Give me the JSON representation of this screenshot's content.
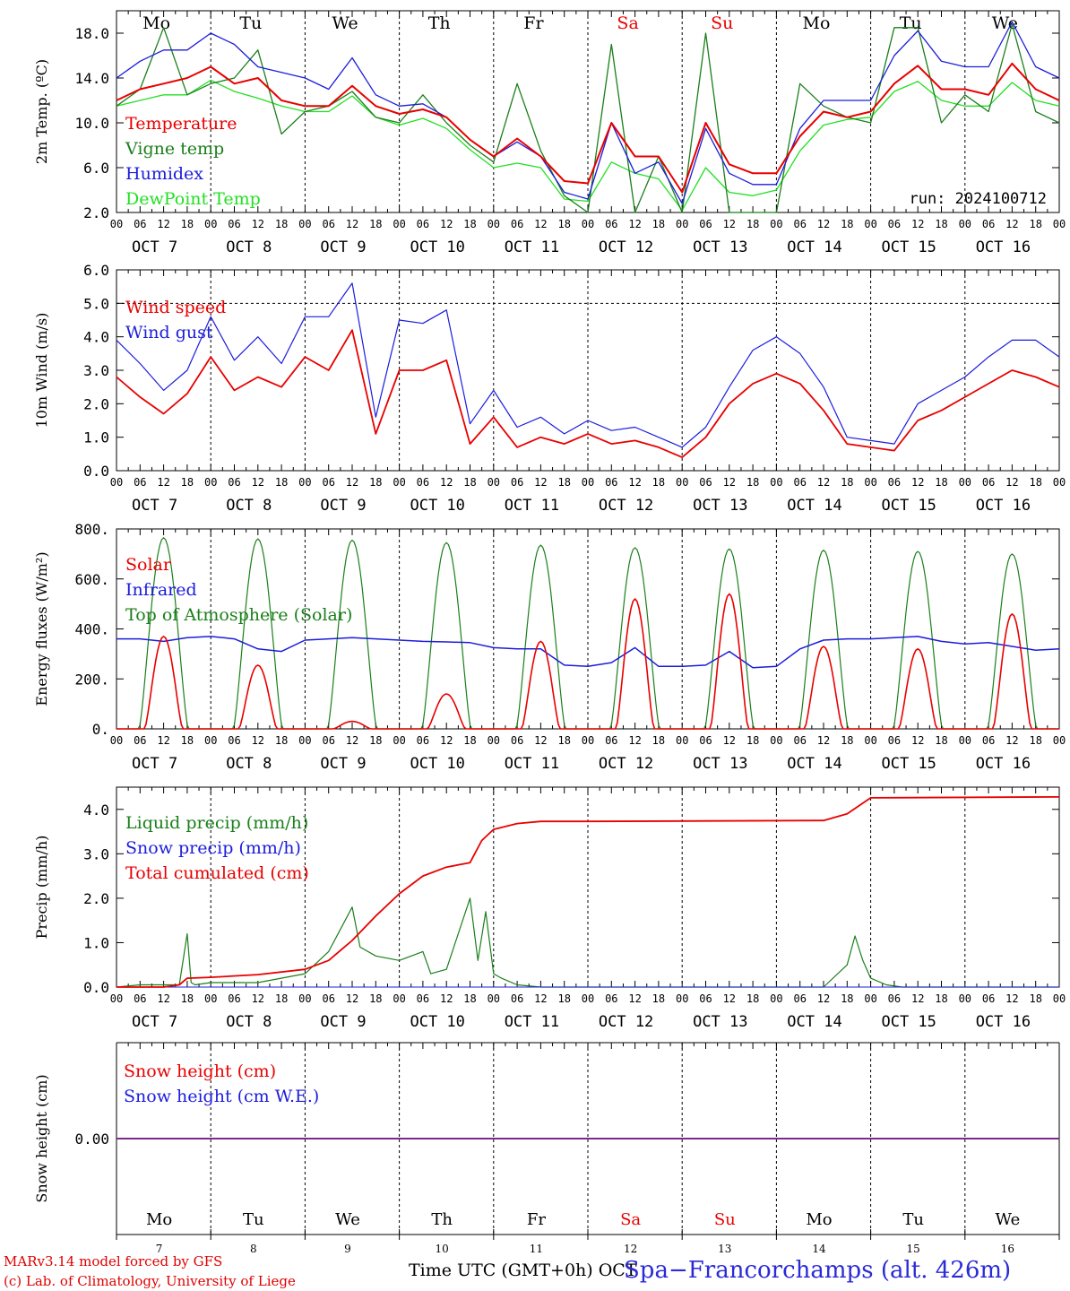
{
  "colors": {
    "red": "#e80000",
    "green": "#1a7f1a",
    "blue": "#1c1cdc",
    "lightgreen": "#22e022",
    "purple": "#7a2a8a",
    "axis": "#000000"
  },
  "footer": {
    "model": "MARv3.14 model forced by GFS",
    "lab": "(c) Lab. of Climatology, University of Liege",
    "time_axis": "Time UTC (GMT+0h) OCT",
    "station": "Spa−Francorchamps (alt. 426m)"
  },
  "days": {
    "weekdays": [
      "Mo",
      "Tu",
      "We",
      "Th",
      "Fr",
      "Sa",
      "Su",
      "Mo",
      "Tu",
      "We"
    ],
    "weekend": [
      false,
      false,
      false,
      false,
      false,
      true,
      true,
      false,
      false,
      false
    ],
    "dates": [
      "OCT  7",
      "OCT  8",
      "OCT  9",
      "OCT 10",
      "OCT 11",
      "OCT 12",
      "OCT 13",
      "OCT 14",
      "OCT 15",
      "OCT 16"
    ],
    "day_numbers": [
      "7",
      "8",
      "9",
      "10",
      "11",
      "12",
      "13",
      "14",
      "15",
      "16"
    ],
    "hour_labels": [
      "00",
      "06",
      "12",
      "18"
    ],
    "end_hour_label": "00"
  },
  "chart_data": [
    {
      "type": "line",
      "ylabel": "2m Temp. (ºC)",
      "ylim": [
        2,
        20
      ],
      "yticks": [
        2,
        6,
        10,
        14,
        18
      ],
      "ytick_labels": [
        "2.0",
        "6.0",
        "10.0",
        "14.0",
        "18.0"
      ],
      "xlim_hours": [
        0,
        240
      ],
      "run_label": "run: 2024100712",
      "series": [
        {
          "name": "Temperature",
          "color": "red",
          "hours": [
            0,
            6,
            12,
            18,
            24,
            30,
            36,
            42,
            48,
            54,
            60,
            66,
            72,
            78,
            84,
            90,
            96,
            102,
            108,
            114,
            120,
            126,
            132,
            138,
            144,
            150,
            156,
            162,
            168,
            174,
            180,
            186,
            192,
            198,
            204,
            210,
            216,
            222,
            228,
            234,
            240
          ],
          "values": [
            12.0,
            13.0,
            13.5,
            14.0,
            15.0,
            13.5,
            14.0,
            12.0,
            11.5,
            11.5,
            13.3,
            11.5,
            10.8,
            11.2,
            10.5,
            8.5,
            7.0,
            8.6,
            7.0,
            4.8,
            4.6,
            10.0,
            7.0,
            7.0,
            3.8,
            10.0,
            6.3,
            5.5,
            5.5,
            8.8,
            11.0,
            10.5,
            11.0,
            13.5,
            15.1,
            13.0,
            13.0,
            12.5,
            15.3,
            13.0,
            12.0
          ]
        },
        {
          "name": "Vigne temp",
          "color": "green",
          "hours": [
            0,
            6,
            12,
            18,
            24,
            30,
            36,
            42,
            48,
            54,
            60,
            66,
            72,
            78,
            84,
            90,
            96,
            102,
            108,
            114,
            120,
            126,
            132,
            138,
            144,
            150,
            156,
            162,
            168,
            174,
            180,
            186,
            192,
            198,
            204,
            210,
            216,
            222,
            228,
            234,
            240
          ],
          "values": [
            11.5,
            13.0,
            18.5,
            12.5,
            13.5,
            14.0,
            16.5,
            9.0,
            11.0,
            11.5,
            12.8,
            10.5,
            10.0,
            12.5,
            10.0,
            8.0,
            6.5,
            13.5,
            7.5,
            3.5,
            1.5,
            17.0,
            2.0,
            7.0,
            1.0,
            18.0,
            1.0,
            1.5,
            0.5,
            13.5,
            11.5,
            10.5,
            10.0,
            18.5,
            18.5,
            10.0,
            12.5,
            11.0,
            18.8,
            11.0,
            10.0
          ]
        },
        {
          "name": "Humidex",
          "color": "blue",
          "hours": [
            0,
            6,
            12,
            18,
            24,
            30,
            36,
            42,
            48,
            54,
            60,
            66,
            72,
            78,
            84,
            90,
            96,
            102,
            108,
            114,
            120,
            126,
            132,
            138,
            144,
            150,
            156,
            162,
            168,
            174,
            180,
            186,
            192,
            198,
            204,
            210,
            216,
            222,
            228,
            234,
            240
          ],
          "values": [
            14.0,
            15.5,
            16.5,
            16.5,
            18.0,
            17.0,
            15.0,
            14.5,
            14.0,
            13.0,
            15.8,
            12.5,
            11.5,
            11.7,
            10.5,
            8.5,
            7.0,
            8.3,
            7.0,
            3.8,
            3.2,
            10.0,
            5.5,
            6.5,
            2.8,
            9.5,
            5.5,
            4.5,
            4.5,
            9.5,
            12.0,
            12.0,
            12.0,
            16.0,
            18.2,
            15.5,
            15.0,
            15.0,
            19.0,
            15.0,
            14.0
          ]
        },
        {
          "name": "DewPoint Temp",
          "color": "lightgreen",
          "hours": [
            0,
            6,
            12,
            18,
            24,
            30,
            36,
            42,
            48,
            54,
            60,
            66,
            72,
            78,
            84,
            90,
            96,
            102,
            108,
            114,
            120,
            126,
            132,
            138,
            144,
            150,
            156,
            162,
            168,
            174,
            180,
            186,
            192,
            198,
            204,
            210,
            216,
            222,
            228,
            234,
            240
          ],
          "values": [
            11.5,
            12.0,
            12.5,
            12.5,
            13.8,
            12.8,
            12.2,
            11.5,
            11.0,
            11.0,
            12.4,
            10.5,
            9.8,
            10.4,
            9.5,
            7.6,
            6.0,
            6.4,
            6.0,
            3.2,
            3.0,
            6.5,
            5.5,
            5.0,
            2.2,
            6.0,
            3.8,
            3.5,
            4.0,
            7.5,
            9.8,
            10.3,
            10.5,
            12.8,
            13.7,
            12.0,
            11.5,
            11.5,
            13.6,
            12.0,
            11.5
          ]
        }
      ]
    },
    {
      "type": "line",
      "ylabel": "10m Wind (m/s)",
      "ylim": [
        0,
        6
      ],
      "yticks": [
        0,
        1,
        2,
        3,
        4,
        5,
        6
      ],
      "ytick_labels": [
        "0.0",
        "1.0",
        "2.0",
        "3.0",
        "4.0",
        "5.0",
        "6.0"
      ],
      "xlim_hours": [
        0,
        240
      ],
      "reference_line": 5,
      "series": [
        {
          "name": "Wind speed",
          "color": "red",
          "hours": [
            0,
            6,
            12,
            18,
            24,
            30,
            36,
            42,
            48,
            54,
            60,
            66,
            72,
            78,
            84,
            90,
            96,
            102,
            108,
            114,
            120,
            126,
            132,
            138,
            144,
            150,
            156,
            162,
            168,
            174,
            180,
            186,
            192,
            198,
            204,
            210,
            216,
            222,
            228,
            234,
            240
          ],
          "values": [
            2.8,
            2.2,
            1.7,
            2.3,
            3.4,
            2.4,
            2.8,
            2.5,
            3.4,
            3.0,
            4.2,
            1.1,
            3.0,
            3.0,
            3.3,
            0.8,
            1.6,
            0.7,
            1.0,
            0.8,
            1.1,
            0.8,
            0.9,
            0.7,
            0.4,
            1.0,
            2.0,
            2.6,
            2.9,
            2.6,
            1.8,
            0.8,
            0.7,
            0.6,
            1.5,
            1.8,
            2.2,
            2.6,
            3.0,
            2.8,
            2.5
          ]
        },
        {
          "name": "Wind gust",
          "color": "blue",
          "hours": [
            0,
            6,
            12,
            18,
            24,
            30,
            36,
            42,
            48,
            54,
            60,
            66,
            72,
            78,
            84,
            90,
            96,
            102,
            108,
            114,
            120,
            126,
            132,
            138,
            144,
            150,
            156,
            162,
            168,
            174,
            180,
            186,
            192,
            198,
            204,
            210,
            216,
            222,
            228,
            234,
            240
          ],
          "values": [
            3.9,
            3.2,
            2.4,
            3.0,
            4.6,
            3.3,
            4.0,
            3.2,
            4.6,
            4.6,
            5.6,
            1.6,
            4.5,
            4.4,
            4.8,
            1.4,
            2.4,
            1.3,
            1.6,
            1.1,
            1.5,
            1.2,
            1.3,
            1.0,
            0.7,
            1.3,
            2.5,
            3.6,
            4.0,
            3.5,
            2.5,
            1.0,
            0.9,
            0.8,
            2.0,
            2.4,
            2.8,
            3.4,
            3.9,
            3.9,
            3.4
          ]
        }
      ]
    },
    {
      "type": "line",
      "ylabel": "Energy fluxes (W/m²)",
      "ylim": [
        0,
        800
      ],
      "yticks": [
        0,
        200,
        400,
        600,
        800
      ],
      "ytick_labels": [
        "0.",
        "200.",
        "400.",
        "600.",
        "800."
      ],
      "xlim_hours": [
        0,
        240
      ],
      "series": [
        {
          "name": "Solar",
          "color": "red",
          "day_peaks": [
            370,
            255,
            30,
            140,
            350,
            520,
            540,
            330,
            320,
            460
          ]
        },
        {
          "name": "Infrared",
          "color": "blue",
          "hours": [
            0,
            6,
            12,
            18,
            24,
            30,
            36,
            42,
            48,
            54,
            60,
            66,
            72,
            78,
            84,
            90,
            96,
            102,
            108,
            114,
            120,
            126,
            132,
            138,
            144,
            150,
            156,
            162,
            168,
            174,
            180,
            186,
            192,
            198,
            204,
            210,
            216,
            222,
            228,
            234,
            240
          ],
          "values": [
            360,
            360,
            350,
            365,
            370,
            360,
            320,
            310,
            355,
            360,
            365,
            360,
            355,
            350,
            348,
            345,
            325,
            320,
            320,
            255,
            250,
            265,
            325,
            250,
            250,
            255,
            310,
            245,
            250,
            320,
            355,
            360,
            360,
            365,
            370,
            350,
            340,
            345,
            330,
            315,
            320
          ]
        },
        {
          "name": "Top of Atmosphere (Solar)",
          "color": "green",
          "day_peaks": [
            765,
            760,
            755,
            745,
            735,
            725,
            720,
            715,
            710,
            700
          ]
        }
      ]
    },
    {
      "type": "line",
      "ylabel": "Precip (mm/h)",
      "ylim": [
        0,
        4.5
      ],
      "yticks": [
        0,
        1,
        2,
        3,
        4
      ],
      "ytick_labels": [
        "0.0",
        "1.0",
        "2.0",
        "3.0",
        "4.0"
      ],
      "xlim_hours": [
        0,
        240
      ],
      "series": [
        {
          "name": "Liquid precip (mm/h)",
          "color": "green",
          "hours": [
            0,
            6,
            12,
            16,
            18,
            19,
            20,
            24,
            36,
            48,
            54,
            60,
            62,
            66,
            72,
            78,
            80,
            84,
            90,
            92,
            94,
            96,
            98,
            102,
            108,
            120,
            180,
            186,
            188,
            190,
            192,
            196,
            200,
            240
          ],
          "values": [
            0,
            0.05,
            0.05,
            0.05,
            1.2,
            0.1,
            0.05,
            0.1,
            0.1,
            0.3,
            0.8,
            1.8,
            0.9,
            0.7,
            0.6,
            0.8,
            0.3,
            0.4,
            2.0,
            0.6,
            1.7,
            0.3,
            0.2,
            0.05,
            0,
            0,
            0,
            0.5,
            1.15,
            0.6,
            0.2,
            0.05,
            0,
            0
          ]
        },
        {
          "name": "Snow precip (mm/h)",
          "color": "blue",
          "hours": [
            0,
            240
          ],
          "values": [
            0,
            0
          ]
        },
        {
          "name": "Total cumulated (cm)",
          "color": "red",
          "hours": [
            0,
            12,
            16,
            18,
            24,
            36,
            48,
            54,
            60,
            66,
            72,
            78,
            84,
            90,
            93,
            96,
            102,
            108,
            120,
            180,
            186,
            192,
            240
          ],
          "values": [
            0,
            0,
            0.05,
            0.2,
            0.22,
            0.28,
            0.4,
            0.6,
            1.05,
            1.6,
            2.1,
            2.5,
            2.7,
            2.8,
            3.3,
            3.55,
            3.68,
            3.73,
            3.73,
            3.75,
            3.9,
            4.26,
            4.28
          ]
        }
      ]
    },
    {
      "type": "line",
      "ylabel": "Snow height (cm)",
      "ytick_labels": [
        "0.00"
      ],
      "xlim_hours": [
        0,
        240
      ],
      "series": [
        {
          "name": "Snow height (cm)",
          "color": "red",
          "hours": [
            0,
            240
          ],
          "values": [
            0,
            0
          ]
        },
        {
          "name": "Snow height (cm W.E.)",
          "color": "blue",
          "hours": [
            0,
            240
          ],
          "values": [
            0,
            0
          ]
        }
      ]
    }
  ]
}
